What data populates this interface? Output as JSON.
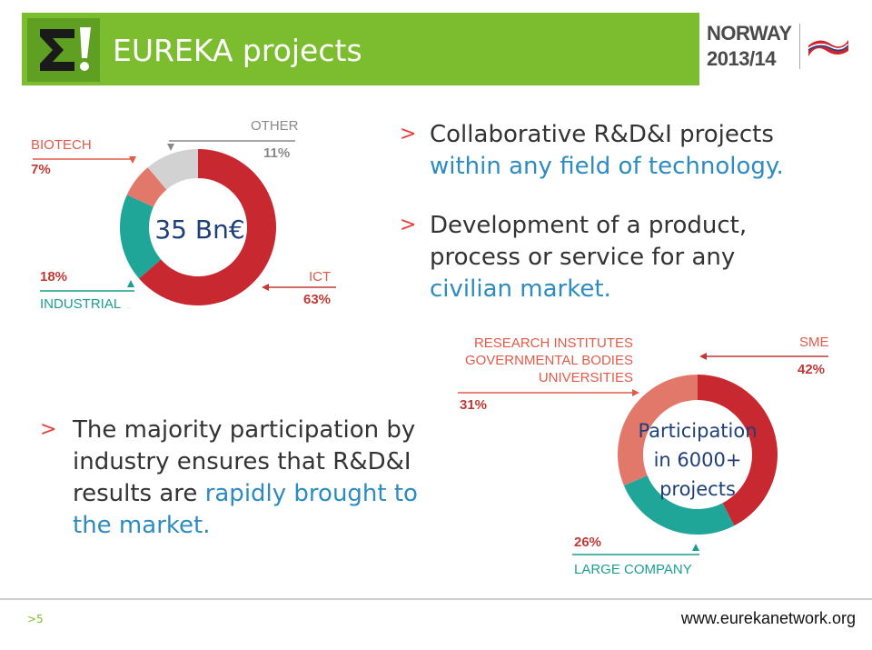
{
  "header": {
    "title": "EUREKA projects",
    "country": "NORWAY",
    "year": "2013/14",
    "colors": {
      "bar": "#7bbd2e"
    }
  },
  "bullets": [
    {
      "plain": "Collaborative R&D&I projects",
      "highlight": "within any field of technology."
    },
    {
      "plain": "Development of a product, process or service for any",
      "highlight": "civilian market."
    },
    {
      "plain": "The majority participation by industry ensures that R&D&I results are",
      "highlight": "rapidly brought to the market."
    }
  ],
  "bullet_marker": ">",
  "chart_data": [
    {
      "type": "pie",
      "center_label": "35 Bn€",
      "categories": [
        "ICT",
        "INDUSTRIAL",
        "BIOTECH",
        "OTHER"
      ],
      "values": [
        63,
        18,
        7,
        11
      ],
      "value_labels": [
        "63%",
        "18%",
        "7%",
        "11%"
      ],
      "colors": [
        "#c8282f",
        "#1fa699",
        "#e2786a",
        "#d2d2d2"
      ]
    },
    {
      "type": "pie",
      "center_label": "Participation in 6000+ projects",
      "categories": [
        "SME",
        "LARGE COMPANY",
        "RESEARCH INSTITUTES GOVERNMENTAL BODIES UNIVERSITIES"
      ],
      "values": [
        42,
        26,
        31
      ],
      "value_labels": [
        "42%",
        "26%",
        "31%"
      ],
      "colors": [
        "#c8282f",
        "#1fa699",
        "#e2786a"
      ]
    }
  ],
  "labels": {
    "research_lines": [
      "RESEARCH INSTITUTES",
      "GOVERNMENTAL BODIES",
      "UNIVERSITIES"
    ],
    "participation_lines": [
      "Participation",
      "in 6000+",
      "projects"
    ]
  },
  "footer": {
    "page": ">5",
    "url": "www.eurekanetwork.org"
  }
}
